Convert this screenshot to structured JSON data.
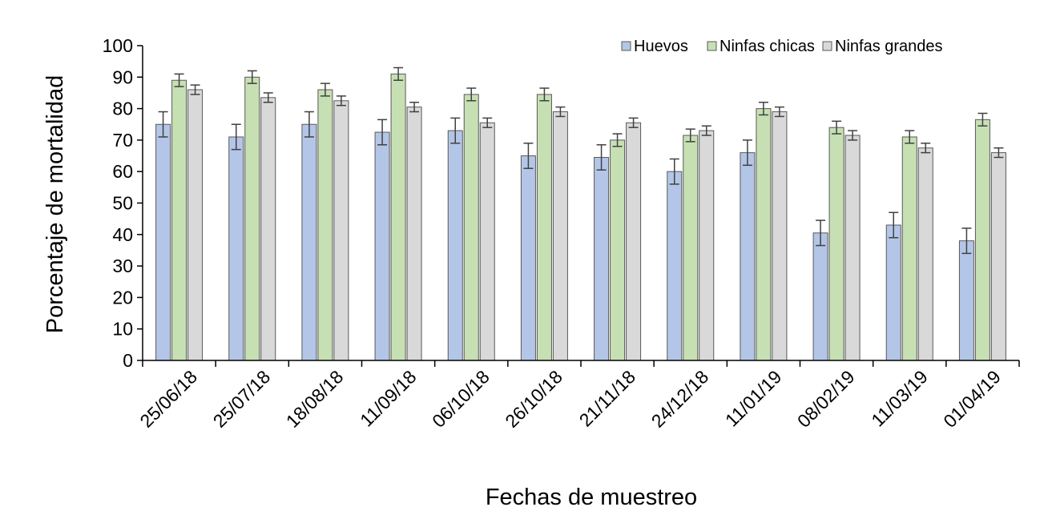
{
  "chart_data": {
    "type": "bar",
    "title": "",
    "xlabel": "Fechas de muestreo",
    "ylabel": "Porcentaje de mortalidad",
    "ylim": [
      0,
      100
    ],
    "yticks": [
      0,
      10,
      20,
      30,
      40,
      50,
      60,
      70,
      80,
      90,
      100
    ],
    "grid": false,
    "legend_position": "top-right",
    "categories": [
      "25/06/18",
      "25/07/18",
      "18/08/18",
      "11/09/18",
      "06/10/18",
      "26/10/18",
      "21/11/18",
      "24/12/18",
      "11/01/19",
      "08/02/19",
      "11/03/19",
      "01/04/19"
    ],
    "series": [
      {
        "name": "Huevos",
        "color": "#B4C6E7",
        "values": [
          75,
          71,
          75,
          72.5,
          73,
          65,
          64.5,
          60,
          66,
          40.5,
          43,
          38
        ],
        "errors": [
          4,
          4,
          4,
          4,
          4,
          4,
          4,
          4,
          4,
          4,
          4,
          4
        ]
      },
      {
        "name": "Ninfas chicas",
        "color": "#C6E0B4",
        "values": [
          89,
          90,
          86,
          91,
          84.5,
          84.5,
          70,
          71.5,
          80,
          74,
          71,
          76.5
        ],
        "errors": [
          2,
          2,
          2,
          2,
          2,
          2,
          2,
          2,
          2,
          2,
          2,
          2
        ]
      },
      {
        "name": "Ninfas grandes",
        "color": "#D9D9D9",
        "values": [
          86,
          83.5,
          82.5,
          80.5,
          75.5,
          79,
          75.5,
          73,
          79,
          71.5,
          67.5,
          66
        ],
        "errors": [
          1.5,
          1.5,
          1.5,
          1.5,
          1.5,
          1.5,
          1.5,
          1.5,
          1.5,
          1.5,
          1.5,
          1.5
        ]
      }
    ]
  }
}
